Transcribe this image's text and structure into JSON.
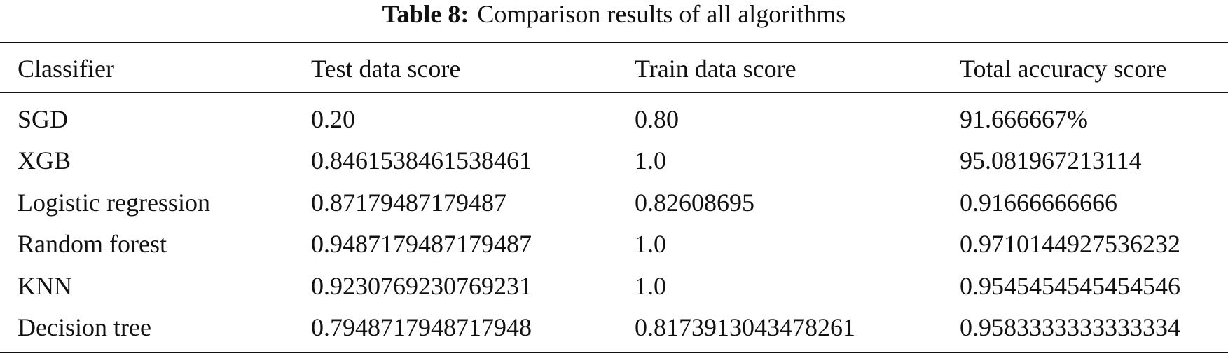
{
  "caption": {
    "label": "Table 8:",
    "text": "Comparison results of all algorithms"
  },
  "table": {
    "header": [
      "Classifier",
      "Test data score",
      "Train data score",
      "Total accuracy score"
    ],
    "rows": [
      [
        "SGD",
        "0.20",
        "0.80",
        "91.666667%"
      ],
      [
        "XGB",
        "0.8461538461538461",
        "1.0",
        "95.081967213114"
      ],
      [
        "Logistic regression",
        "0.87179487179487",
        "0.82608695",
        "0.91666666666"
      ],
      [
        "Random forest",
        "0.9487179487179487",
        "1.0",
        "0.9710144927536232"
      ],
      [
        "KNN",
        "0.9230769230769231",
        "1.0",
        "0.9545454545454546"
      ],
      [
        "Decision tree",
        "0.7948717948717948",
        "0.8173913043478261",
        "0.9583333333333334"
      ]
    ]
  }
}
